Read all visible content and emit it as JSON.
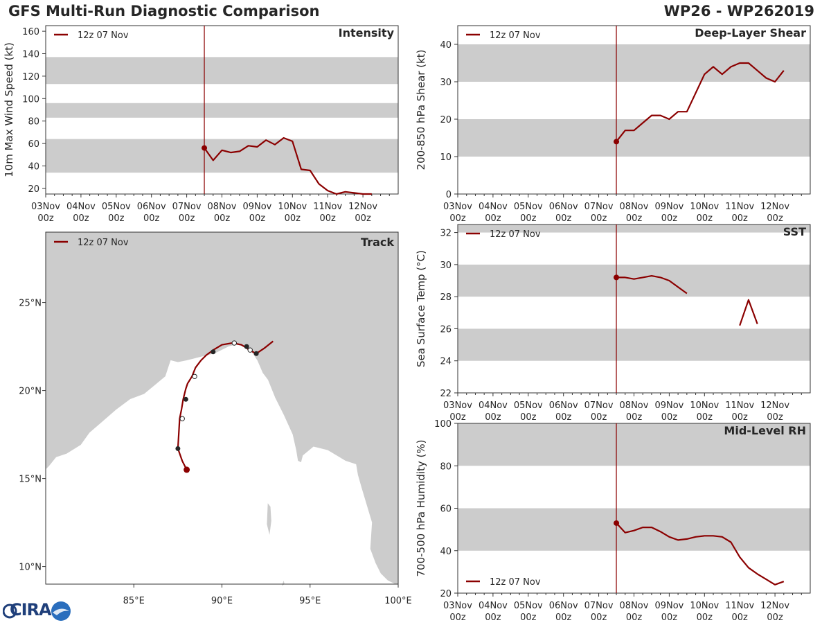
{
  "header": {
    "title_left": "GFS Multi-Run Diagnostic Comparison",
    "title_right": "WP26 - WP262019"
  },
  "logo": {
    "text": "CIRA",
    "subtext": ""
  },
  "run": {
    "legend_label": "12z 07 Nov",
    "marker_time": 4.5
  },
  "colors": {
    "line": "#8b0000",
    "band": "#cccccc",
    "marker_line": "#8b0000",
    "land": "#cccccc",
    "coast": "#ffffff"
  },
  "time_axis": {
    "min": 0,
    "max": 10,
    "ticks": [
      {
        "t": 0,
        "day": "03Nov",
        "hour": "00z"
      },
      {
        "t": 1,
        "day": "04Nov",
        "hour": "00z"
      },
      {
        "t": 2,
        "day": "05Nov",
        "hour": "00z"
      },
      {
        "t": 3,
        "day": "06Nov",
        "hour": "00z"
      },
      {
        "t": 4,
        "day": "07Nov",
        "hour": "00z"
      },
      {
        "t": 5,
        "day": "08Nov",
        "hour": "00z"
      },
      {
        "t": 6,
        "day": "09Nov",
        "hour": "00z"
      },
      {
        "t": 7,
        "day": "10Nov",
        "hour": "00z"
      },
      {
        "t": 8,
        "day": "11Nov",
        "hour": "00z"
      },
      {
        "t": 9,
        "day": "12Nov",
        "hour": "00z"
      }
    ]
  },
  "chart_data": [
    {
      "id": "intensity",
      "type": "line",
      "title": "Intensity",
      "ylabel": "10m Max Wind Speed (kt)",
      "ylim": [
        15,
        165
      ],
      "yticks": [
        20,
        40,
        60,
        80,
        100,
        120,
        140,
        160
      ],
      "bands": [
        [
          34,
          64
        ],
        [
          83,
          96
        ],
        [
          113,
          137
        ]
      ],
      "legend": "12z 07 Nov",
      "series": [
        {
          "name": "12z 07 Nov",
          "x": [
            4.5,
            4.75,
            5.0,
            5.25,
            5.5,
            5.75,
            6.0,
            6.25,
            6.5,
            6.75,
            7.0,
            7.25,
            7.5,
            7.75,
            8.0,
            8.25,
            8.5,
            8.75,
            9.0,
            9.25
          ],
          "y": [
            56,
            45,
            54,
            52,
            53,
            58,
            57,
            63,
            59,
            65,
            62,
            37,
            36,
            24,
            18,
            15,
            17,
            16,
            15,
            15
          ]
        }
      ]
    },
    {
      "id": "shear",
      "type": "line",
      "title": "Deep-Layer Shear",
      "ylabel": "200-850 hPa Shear (kt)",
      "ylim": [
        0,
        45
      ],
      "yticks": [
        0,
        10,
        20,
        30,
        40
      ],
      "bands": [
        [
          10,
          20
        ],
        [
          30,
          40
        ]
      ],
      "legend": "12z 07 Nov",
      "series": [
        {
          "name": "12z 07 Nov",
          "x": [
            4.5,
            4.75,
            5.0,
            5.25,
            5.5,
            5.75,
            6.0,
            6.25,
            6.5,
            6.75,
            7.0,
            7.25,
            7.5,
            7.75,
            8.0,
            8.25,
            8.5,
            8.75,
            9.0,
            9.25
          ],
          "y": [
            14,
            17,
            17,
            19,
            21,
            21,
            20,
            22,
            22,
            27,
            32,
            34,
            32,
            34,
            35,
            35,
            33,
            31,
            30,
            33
          ]
        }
      ]
    },
    {
      "id": "sst",
      "type": "line",
      "title": "SST",
      "ylabel": "Sea Surface Temp (°C)",
      "ylim": [
        22,
        32.5
      ],
      "yticks": [
        22,
        24,
        26,
        28,
        30,
        32
      ],
      "bands": [
        [
          24,
          26
        ],
        [
          28,
          30
        ],
        [
          32,
          32.5
        ]
      ],
      "legend": "12z 07 Nov",
      "series": [
        {
          "name": "12z 07 Nov",
          "x": [
            4.5,
            4.75,
            5.0,
            5.25,
            5.5,
            5.75,
            6.0,
            6.25,
            6.5,
            null,
            8.0,
            8.25,
            8.5
          ],
          "y": [
            29.2,
            29.2,
            29.1,
            29.2,
            29.3,
            29.2,
            29.0,
            28.6,
            28.2,
            null,
            26.2,
            27.8,
            26.3
          ]
        }
      ]
    },
    {
      "id": "rh",
      "type": "line",
      "title": "Mid-Level RH",
      "ylabel": "700-500 hPa Humidity (%)",
      "ylim": [
        20,
        100
      ],
      "yticks": [
        20,
        40,
        60,
        80,
        100
      ],
      "bands": [
        [
          40,
          60
        ],
        [
          80,
          100
        ]
      ],
      "legend": "12z 07 Nov",
      "series": [
        {
          "name": "12z 07 Nov",
          "x": [
            4.5,
            4.75,
            5.0,
            5.25,
            5.5,
            5.75,
            6.0,
            6.25,
            6.5,
            6.75,
            7.0,
            7.25,
            7.5,
            7.75,
            8.0,
            8.25,
            8.5,
            8.75,
            9.0,
            9.25
          ],
          "y": [
            53,
            48.5,
            49.5,
            51,
            51,
            49,
            46.5,
            45,
            45.5,
            46.5,
            47,
            47,
            46.5,
            44,
            37,
            32,
            29,
            26.5,
            24,
            25.5
          ]
        }
      ]
    },
    {
      "id": "track",
      "type": "scatter",
      "title": "Track",
      "legend": "12z 07 Nov",
      "xlim": [
        80,
        100
      ],
      "ylim": [
        9,
        29
      ],
      "xticks": [
        {
          "v": 85,
          "label": "85°E"
        },
        {
          "v": 90,
          "label": "90°E"
        },
        {
          "v": 95,
          "label": "95°E"
        },
        {
          "v": 100,
          "label": "100°E"
        }
      ],
      "yticks": [
        {
          "v": 10,
          "label": "10°N"
        },
        {
          "v": 15,
          "label": "15°N"
        },
        {
          "v": 20,
          "label": "20°N"
        },
        {
          "v": 25,
          "label": "25°N"
        }
      ],
      "track": {
        "lon": [
          88.0,
          87.75,
          87.5,
          87.55,
          87.6,
          87.7,
          87.8,
          87.95,
          88.05,
          88.3,
          88.5,
          88.8,
          89.1,
          89.5,
          90.0,
          90.6,
          91.1,
          91.35,
          91.55,
          91.95,
          92.4,
          92.9
        ],
        "lat": [
          15.5,
          16.0,
          16.7,
          17.5,
          18.4,
          18.9,
          19.5,
          20.1,
          20.4,
          20.8,
          21.3,
          21.7,
          22.0,
          22.3,
          22.6,
          22.7,
          22.6,
          22.45,
          22.3,
          22.1,
          22.4,
          22.8
        ]
      },
      "points": [
        {
          "lon": 88.0,
          "lat": 15.5,
          "kind": "start"
        },
        {
          "lon": 87.5,
          "lat": 16.7,
          "kind": "filled"
        },
        {
          "lon": 87.75,
          "lat": 18.4,
          "kind": "open"
        },
        {
          "lon": 87.95,
          "lat": 19.5,
          "kind": "filled"
        },
        {
          "lon": 88.45,
          "lat": 20.8,
          "kind": "open"
        },
        {
          "lon": 89.5,
          "lat": 22.2,
          "kind": "filled"
        },
        {
          "lon": 90.7,
          "lat": 22.7,
          "kind": "open"
        },
        {
          "lon": 91.4,
          "lat": 22.5,
          "kind": "filled"
        },
        {
          "lon": 91.6,
          "lat": 22.3,
          "kind": "open"
        },
        {
          "lon": 91.95,
          "lat": 22.1,
          "kind": "filled"
        }
      ],
      "coast_west": {
        "lon": [
          80,
          80,
          80.2,
          80.6,
          81.2,
          82.0,
          82.5,
          83.2,
          84.0,
          84.8,
          85.6,
          86.2,
          86.8,
          87.0,
          87.1,
          87.5,
          88.0,
          88.4,
          88.8,
          89.2,
          89.6,
          90.0,
          90.4,
          90.8,
          91.2,
          91.6,
          92.0,
          92.3,
          92.6,
          93.0,
          93.5,
          94.0,
          94.2,
          94.3,
          94.5,
          94.6,
          95.2,
          96.0,
          97.0,
          97.6,
          97.7,
          97.9,
          98.2,
          98.5,
          98.4,
          98.7,
          99.0,
          99.4,
          99.8,
          100,
          100,
          80
        ],
        "lat": [
          9,
          15.5,
          15.7,
          16.2,
          16.4,
          16.9,
          17.6,
          18.2,
          18.9,
          19.5,
          19.8,
          20.3,
          20.8,
          21.4,
          21.7,
          21.6,
          21.7,
          21.8,
          21.9,
          22.0,
          22.1,
          22.3,
          22.5,
          22.6,
          22.5,
          22.3,
          21.7,
          21.0,
          20.6,
          19.6,
          18.6,
          17.5,
          16.6,
          16.0,
          15.9,
          16.3,
          16.8,
          16.6,
          16.0,
          15.8,
          15.2,
          14.5,
          13.5,
          12.5,
          11.0,
          10.2,
          9.6,
          9.2,
          9.0,
          9.0,
          29,
          29
        ]
      },
      "islands": [
        {
          "lon": [
            92.6,
            92.75,
            92.8,
            92.7,
            92.55,
            92.6
          ],
          "lat": [
            13.6,
            13.4,
            12.6,
            11.8,
            12.4,
            13.6
          ]
        },
        {
          "lon": [
            93.4,
            93.55,
            93.5,
            93.4
          ],
          "lat": [
            8.9,
            9.0,
            9.2,
            8.9
          ]
        }
      ]
    }
  ]
}
